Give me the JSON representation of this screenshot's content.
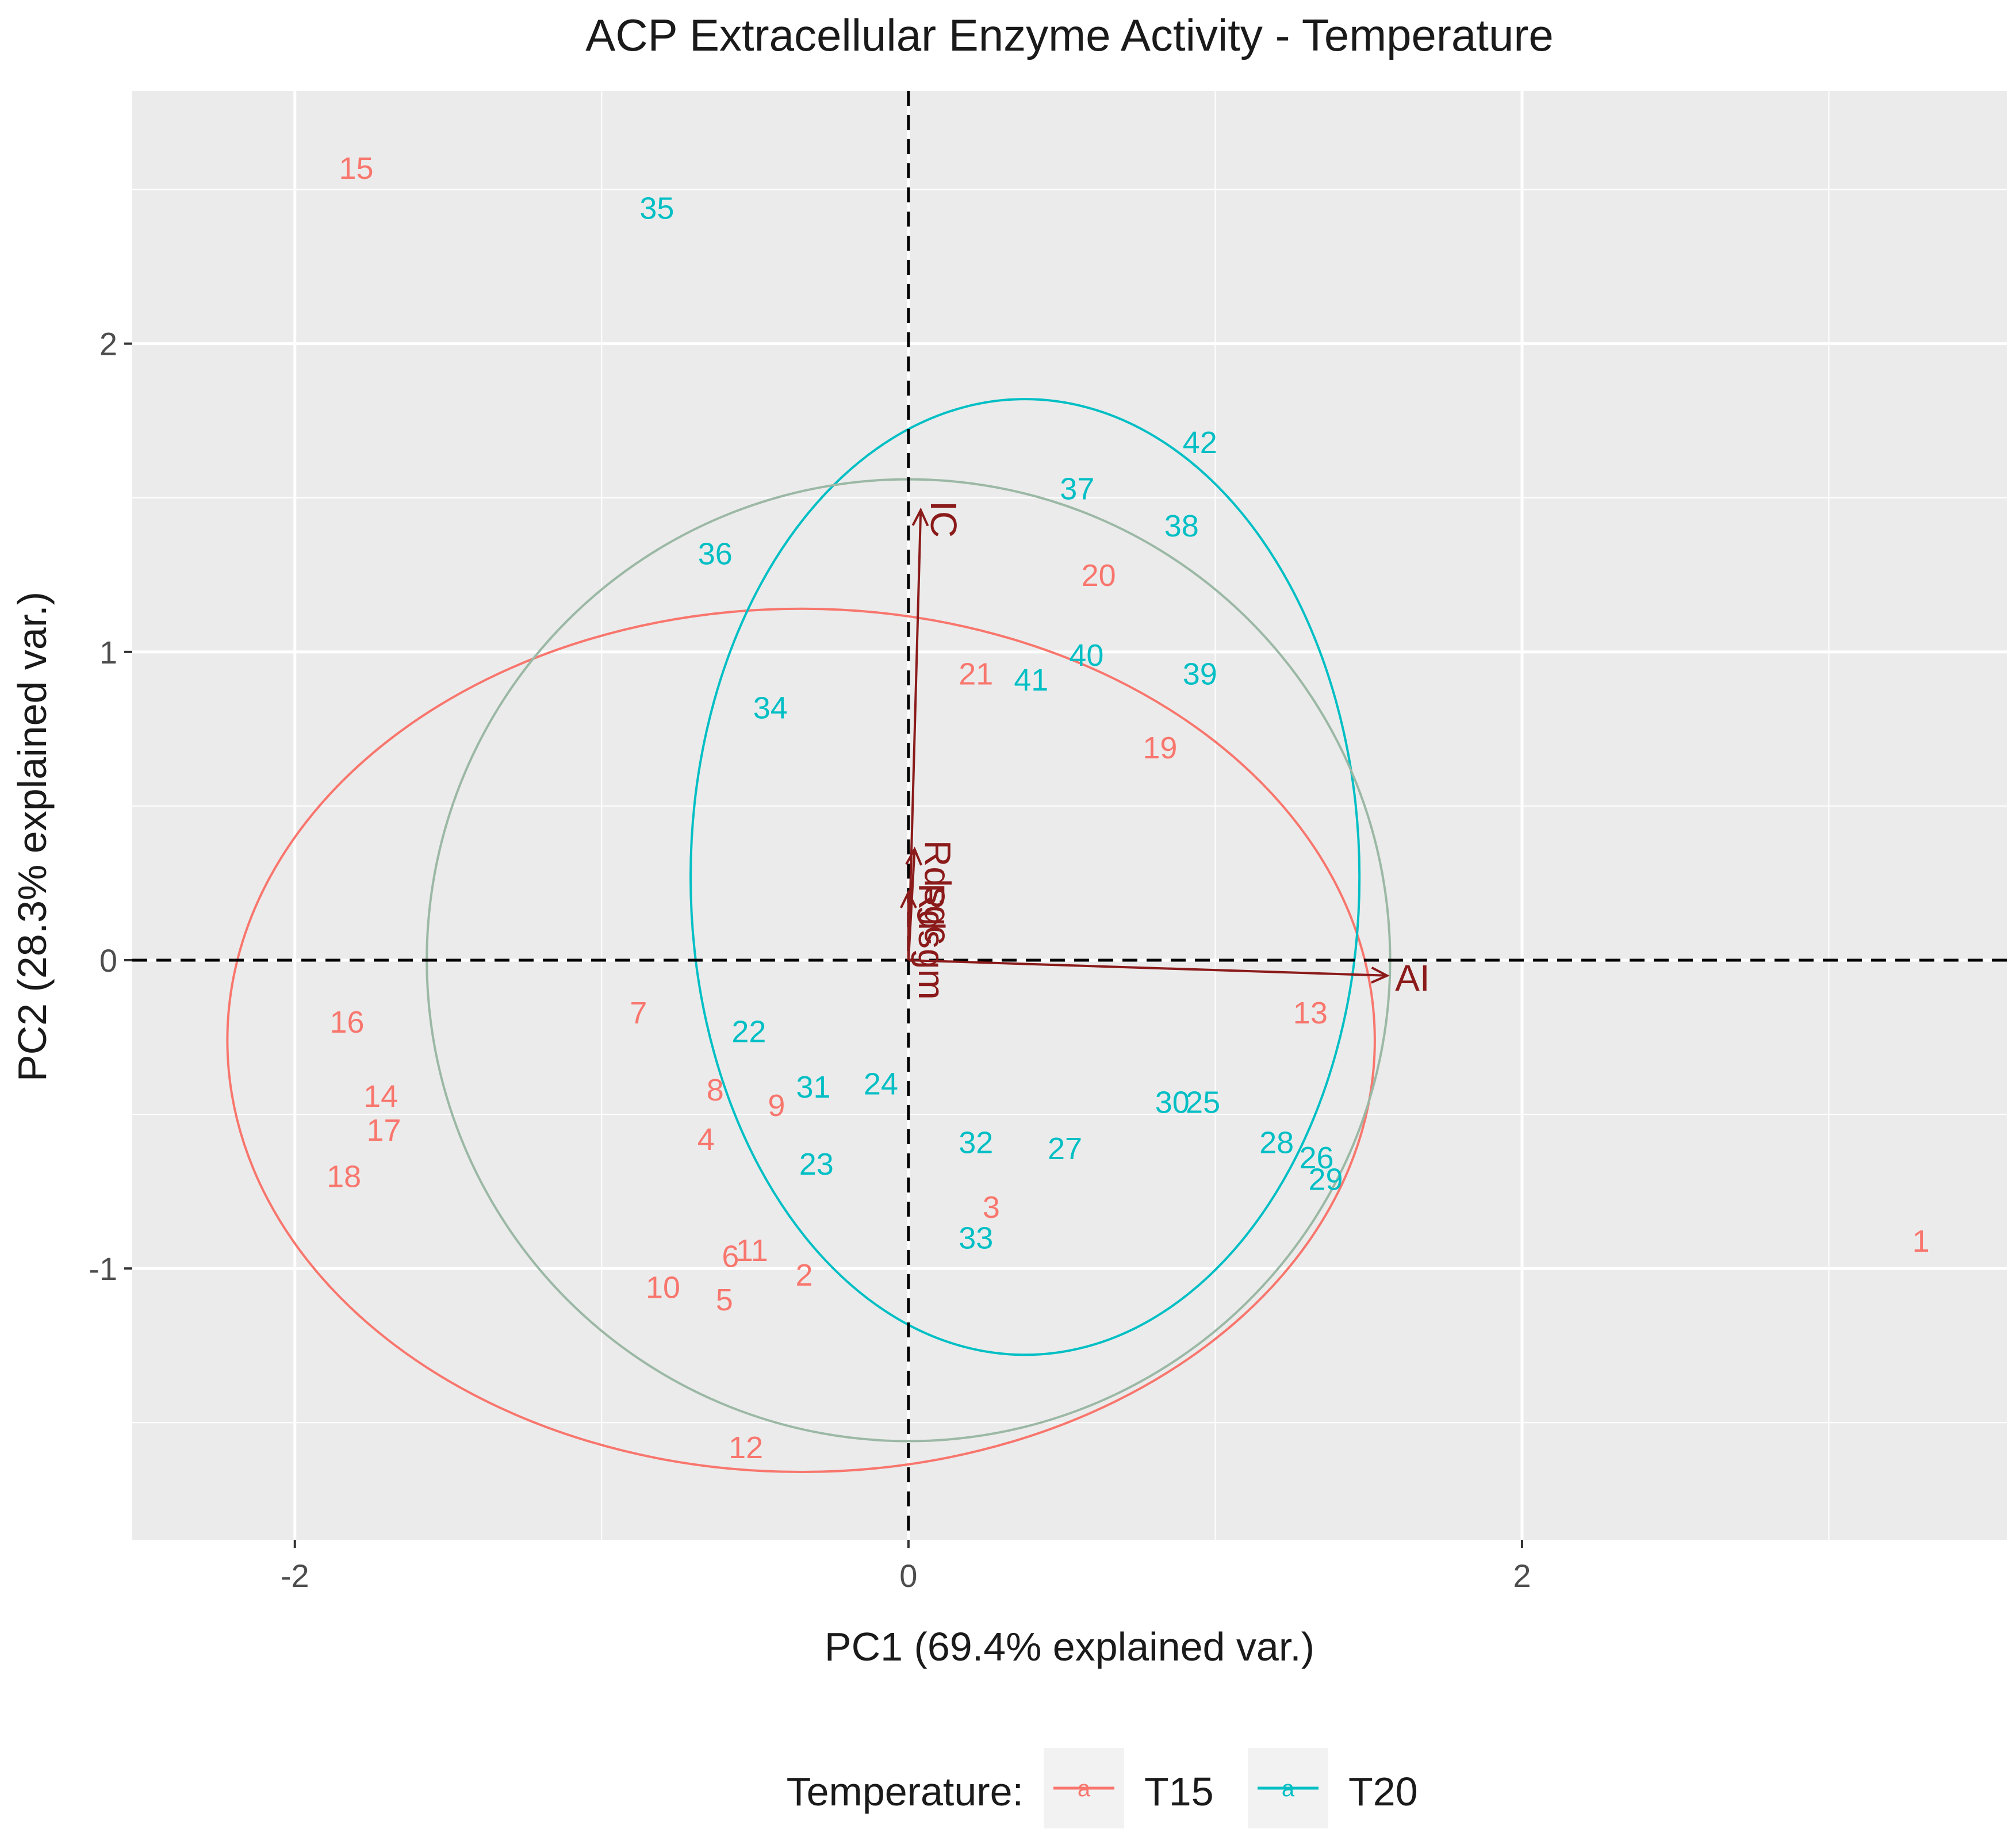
{
  "chart_data": {
    "type": "scatter",
    "title": "ACP Extracellular Enzyme Activity - Temperature",
    "xlabel": "PC1 (69.4% explained var.)",
    "ylabel": "PC2 (28.3% explained var.)",
    "xlim": [
      -2.53,
      3.58
    ],
    "ylim": [
      -1.88,
      2.82
    ],
    "x_ticks": [
      -2,
      0,
      2
    ],
    "x_tick_labels": [
      "-2",
      "0",
      "2"
    ],
    "y_ticks": [
      -1,
      0,
      1,
      2
    ],
    "y_tick_labels": [
      "-1",
      "0",
      "1",
      "2"
    ],
    "grid": true,
    "legend": {
      "position": "bottom",
      "title": "Temperature:",
      "key_glyph": "a",
      "entries": [
        {
          "label": "T15",
          "color": "#F8766D"
        },
        {
          "label": "T20",
          "color": "#00BFC4"
        }
      ]
    },
    "colors": {
      "T15": "#F8766D",
      "T20": "#00BFC4",
      "overall_ellipse": "#9bb8a5",
      "arrow": "#8B1A1A",
      "panel_bg": "#EBEBEB",
      "grid": "#ffffff",
      "reference_line": "#000000"
    },
    "series": [
      {
        "name": "T15",
        "points": [
          {
            "label": "1",
            "x": 3.3,
            "y": -0.91
          },
          {
            "label": "2",
            "x": -0.34,
            "y": -1.02
          },
          {
            "label": "3",
            "x": 0.27,
            "y": -0.8
          },
          {
            "label": "4",
            "x": -0.66,
            "y": -0.58
          },
          {
            "label": "5",
            "x": -0.6,
            "y": -1.1
          },
          {
            "label": "6",
            "x": -0.58,
            "y": -0.96
          },
          {
            "label": "7",
            "x": -0.88,
            "y": -0.17
          },
          {
            "label": "8",
            "x": -0.63,
            "y": -0.42
          },
          {
            "label": "9",
            "x": -0.43,
            "y": -0.47
          },
          {
            "label": "10",
            "x": -0.8,
            "y": -1.06
          },
          {
            "label": "11",
            "x": -0.51,
            "y": -0.94
          },
          {
            "label": "12",
            "x": -0.53,
            "y": -1.58
          },
          {
            "label": "13",
            "x": 1.31,
            "y": -0.17
          },
          {
            "label": "14",
            "x": -1.72,
            "y": -0.44
          },
          {
            "label": "15",
            "x": -1.8,
            "y": 2.57
          },
          {
            "label": "16",
            "x": -1.83,
            "y": -0.2
          },
          {
            "label": "17",
            "x": -1.71,
            "y": -0.55
          },
          {
            "label": "18",
            "x": -1.84,
            "y": -0.7
          },
          {
            "label": "19",
            "x": 0.82,
            "y": 0.69
          },
          {
            "label": "20",
            "x": 0.62,
            "y": 1.25
          },
          {
            "label": "21",
            "x": 0.22,
            "y": 0.93
          }
        ]
      },
      {
        "name": "T20",
        "points": [
          {
            "label": "22",
            "x": -0.52,
            "y": -0.23
          },
          {
            "label": "23",
            "x": -0.3,
            "y": -0.66
          },
          {
            "label": "24",
            "x": -0.09,
            "y": -0.4
          },
          {
            "label": "25",
            "x": 0.96,
            "y": -0.46
          },
          {
            "label": "26",
            "x": 1.33,
            "y": -0.64
          },
          {
            "label": "27",
            "x": 0.51,
            "y": -0.61
          },
          {
            "label": "28",
            "x": 1.2,
            "y": -0.59
          },
          {
            "label": "29",
            "x": 1.36,
            "y": -0.71
          },
          {
            "label": "30",
            "x": 0.86,
            "y": -0.46
          },
          {
            "label": "31",
            "x": -0.31,
            "y": -0.41
          },
          {
            "label": "32",
            "x": 0.22,
            "y": -0.59
          },
          {
            "label": "33",
            "x": 0.22,
            "y": -0.9
          },
          {
            "label": "34",
            "x": -0.45,
            "y": 0.82
          },
          {
            "label": "35",
            "x": -0.82,
            "y": 2.44
          },
          {
            "label": "36",
            "x": -0.63,
            "y": 1.32
          },
          {
            "label": "37",
            "x": 0.55,
            "y": 1.53
          },
          {
            "label": "38",
            "x": 0.89,
            "y": 1.41
          },
          {
            "label": "39",
            "x": 0.95,
            "y": 0.93
          },
          {
            "label": "40",
            "x": 0.58,
            "y": 0.99
          },
          {
            "label": "41",
            "x": 0.4,
            "y": 0.91
          },
          {
            "label": "42",
            "x": 0.95,
            "y": 1.68
          }
        ]
      }
    ],
    "loadings": [
      {
        "label": "AI",
        "x": 1.56,
        "y": -0.05
      },
      {
        "label": "IC",
        "x": 0.04,
        "y": 1.46
      },
      {
        "label": "Rdsgc",
        "x": 0.02,
        "y": 0.36
      },
      {
        "label": "Rdsgm",
        "x": 0.0,
        "y": 0.22
      }
    ],
    "ellipses": [
      {
        "group": "T15",
        "cx": -0.35,
        "cy": -0.26,
        "rx": 1.87,
        "ry": 1.4
      },
      {
        "group": "T20",
        "cx": 0.38,
        "cy": 0.27,
        "rx": 1.09,
        "ry": 1.55
      },
      {
        "group": "overall",
        "cx": 0.0,
        "cy": 0.0,
        "rx": 1.57,
        "ry": 1.56
      }
    ]
  }
}
